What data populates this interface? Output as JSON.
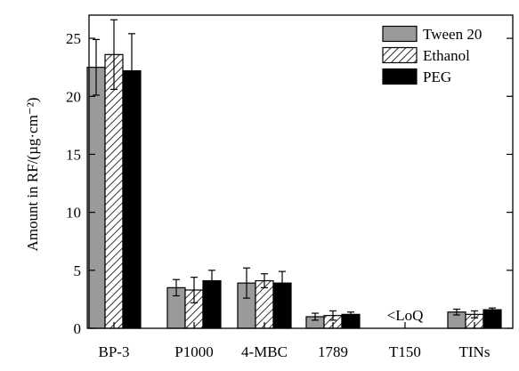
{
  "chart_data": {
    "type": "bar",
    "title": "",
    "xlabel": "",
    "ylabel": "Amount in RF/(µg·cm⁻²)",
    "ylim": [
      0,
      27
    ],
    "yticks": [
      0,
      5,
      10,
      15,
      20,
      25
    ],
    "grid": false,
    "legend_position": "top-right",
    "categories": [
      "BP-3",
      "P1000",
      "4-MBC",
      "1789",
      "T150",
      "TINs"
    ],
    "series": [
      {
        "name": "Tween 20",
        "pattern": "solid",
        "color": "#9a9a9a",
        "values": [
          22.5,
          3.5,
          3.9,
          1.0,
          null,
          1.4
        ],
        "errors": [
          2.4,
          0.7,
          1.3,
          0.3,
          null,
          0.25
        ]
      },
      {
        "name": "Ethanol",
        "pattern": "hatched",
        "color": "#ffffff",
        "values": [
          23.6,
          3.3,
          4.1,
          1.1,
          null,
          1.2
        ],
        "errors": [
          3.0,
          1.1,
          0.6,
          0.4,
          null,
          0.3
        ]
      },
      {
        "name": "PEG",
        "pattern": "solid",
        "color": "#000000",
        "values": [
          22.2,
          4.1,
          3.9,
          1.2,
          null,
          1.6
        ],
        "errors": [
          3.2,
          0.9,
          1.0,
          0.2,
          null,
          0.15
        ]
      }
    ],
    "annotations": [
      {
        "category": "T150",
        "text": "<LoQ"
      }
    ]
  }
}
